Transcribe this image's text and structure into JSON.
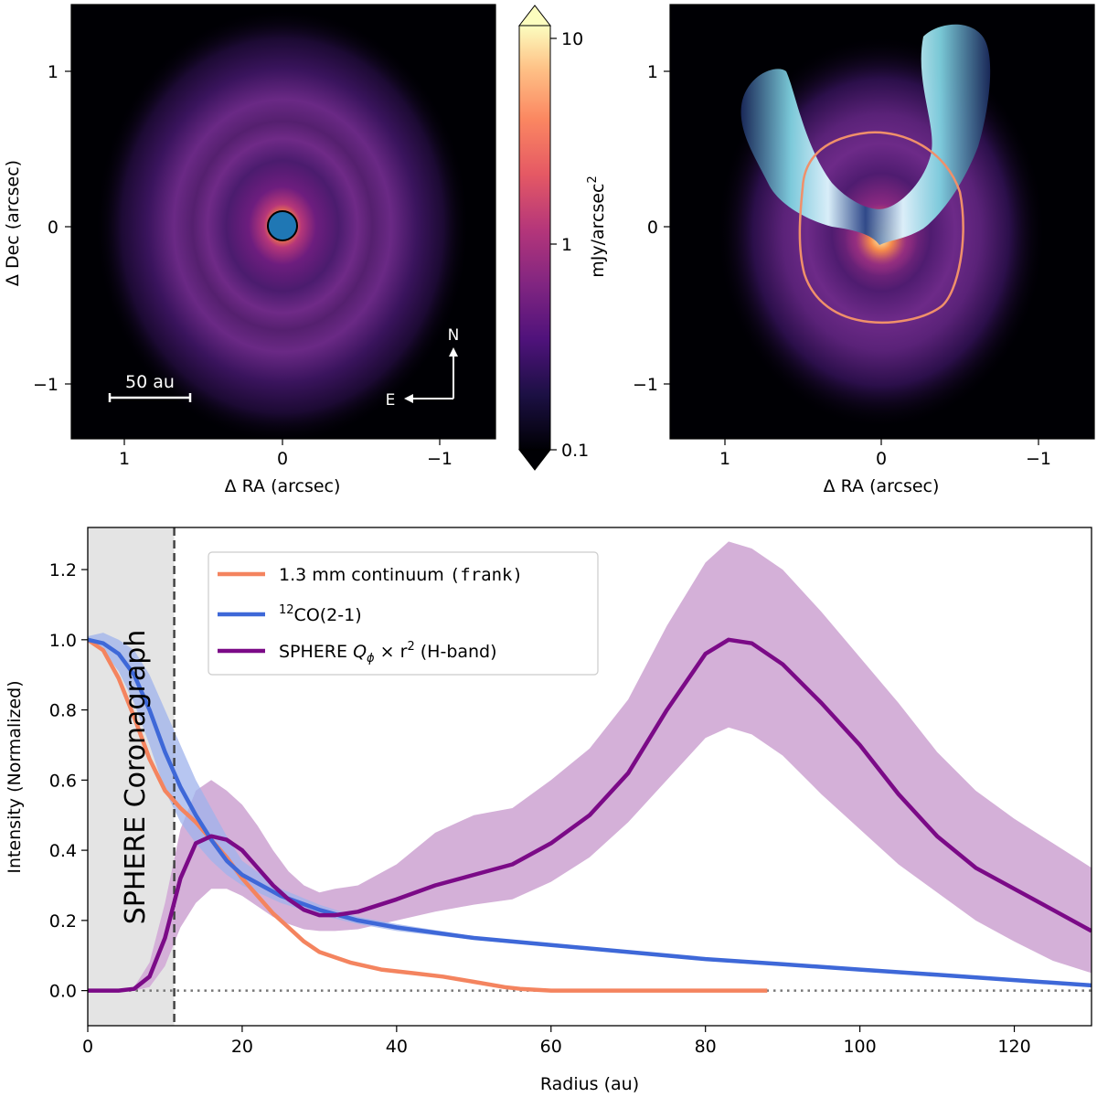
{
  "colors": {
    "continuum": "#f4845f",
    "co": "#3e68d8",
    "sphere": "#7b0a87",
    "sphere_band": "#d4b0d8",
    "co_band": "#9fb3ec",
    "coronagraph_fill": "#e4e4e4",
    "dot": "#1f77b4"
  },
  "top_left": {
    "xlabel": "Δ RA (arcsec)",
    "ylabel": "Δ Dec (arcsec)",
    "xticks": [
      "1",
      "0",
      "−1"
    ],
    "yticks": [
      "1",
      "0",
      "−1"
    ],
    "scalebar_label": "50 au",
    "compass_n": "N",
    "compass_e": "E",
    "xlim": [
      1.35,
      -1.35
    ],
    "ylim": [
      -1.35,
      1.35
    ]
  },
  "colorbar": {
    "label": "mJy/arcsec",
    "label_sup": "2",
    "ticks": [
      "10",
      "1",
      "0.1"
    ]
  },
  "top_right": {
    "xlabel": "Δ RA (arcsec)",
    "xticks": [
      "1",
      "0",
      "−1"
    ],
    "yticks": [
      "1",
      "0",
      "−1"
    ]
  },
  "chart_data": {
    "type": "line",
    "xlabel": "Radius (au)",
    "ylabel": "Intensity (Normalized)",
    "xlim": [
      0,
      130
    ],
    "ylim": [
      -0.1,
      1.32
    ],
    "xticks": [
      "0",
      "20",
      "40",
      "60",
      "80",
      "100",
      "120"
    ],
    "yticks": [
      "0.0",
      "0.2",
      "0.4",
      "0.6",
      "0.8",
      "1.0",
      "1.2"
    ],
    "coronagraph_label": "SPHERE Coronagraph",
    "coronagraph_radius_au": 11.2,
    "legend_position": "top-center",
    "series": [
      {
        "name": "1.3 mm continuum",
        "name_code": "(frank)",
        "x": [
          0,
          2,
          4,
          6,
          8,
          10,
          12,
          14,
          16,
          18,
          20,
          22,
          24,
          26,
          28,
          30,
          34,
          38,
          42,
          46,
          50,
          54,
          56,
          60,
          65,
          70,
          75,
          80,
          85,
          88
        ],
        "y": [
          1.0,
          0.97,
          0.89,
          0.78,
          0.66,
          0.57,
          0.52,
          0.48,
          0.43,
          0.38,
          0.32,
          0.27,
          0.22,
          0.18,
          0.14,
          0.11,
          0.08,
          0.06,
          0.05,
          0.04,
          0.025,
          0.01,
          0.005,
          0.0,
          0.0,
          0.0,
          0.0,
          0.0,
          0.0,
          0.0
        ]
      },
      {
        "name": "CO(2-1)",
        "name_sup": "12",
        "x": [
          0,
          2,
          4,
          6,
          8,
          10,
          12,
          14,
          16,
          18,
          20,
          25,
          30,
          35,
          40,
          50,
          60,
          70,
          80,
          90,
          100,
          110,
          120,
          130
        ],
        "y": [
          1.0,
          0.99,
          0.96,
          0.9,
          0.8,
          0.68,
          0.58,
          0.5,
          0.43,
          0.37,
          0.33,
          0.27,
          0.23,
          0.2,
          0.18,
          0.15,
          0.13,
          0.11,
          0.09,
          0.075,
          0.06,
          0.045,
          0.03,
          0.015
        ],
        "lower": [
          1.0,
          0.97,
          0.91,
          0.82,
          0.7,
          0.57,
          0.48,
          0.42,
          0.37,
          0.33,
          0.3,
          0.25,
          0.215,
          0.19,
          0.17,
          0.145,
          0.125,
          0.105,
          0.085,
          0.07,
          0.055,
          0.04,
          0.025,
          0.01
        ],
        "upper": [
          1.01,
          1.02,
          1.0,
          0.97,
          0.9,
          0.8,
          0.7,
          0.6,
          0.52,
          0.44,
          0.37,
          0.29,
          0.245,
          0.21,
          0.19,
          0.155,
          0.135,
          0.115,
          0.095,
          0.08,
          0.065,
          0.05,
          0.035,
          0.02
        ]
      },
      {
        "name": "SPHERE",
        "name_math": "Q",
        "name_sub": "ϕ",
        "name_times": " × r",
        "name_sup": "2",
        "name_band": " (H-band)",
        "x": [
          0,
          2,
          4,
          6,
          8,
          10,
          12,
          14,
          16,
          18,
          20,
          22,
          24,
          26,
          28,
          30,
          32,
          35,
          40,
          45,
          50,
          55,
          60,
          65,
          70,
          75,
          80,
          83,
          86,
          90,
          95,
          100,
          105,
          110,
          115,
          120,
          125,
          130
        ],
        "y": [
          0.0,
          0.0,
          0.0,
          0.005,
          0.04,
          0.15,
          0.32,
          0.42,
          0.44,
          0.43,
          0.4,
          0.35,
          0.3,
          0.26,
          0.23,
          0.215,
          0.215,
          0.225,
          0.26,
          0.3,
          0.33,
          0.36,
          0.42,
          0.5,
          0.62,
          0.8,
          0.96,
          1.0,
          0.99,
          0.93,
          0.82,
          0.7,
          0.56,
          0.44,
          0.35,
          0.29,
          0.23,
          0.17
        ],
        "lower": [
          0.0,
          0.0,
          0.0,
          0.0,
          0.01,
          0.07,
          0.18,
          0.25,
          0.29,
          0.29,
          0.27,
          0.24,
          0.21,
          0.19,
          0.175,
          0.17,
          0.17,
          0.175,
          0.2,
          0.225,
          0.245,
          0.26,
          0.31,
          0.38,
          0.48,
          0.6,
          0.72,
          0.75,
          0.73,
          0.67,
          0.56,
          0.46,
          0.36,
          0.28,
          0.2,
          0.14,
          0.085,
          0.05
        ],
        "upper": [
          0.0,
          0.0,
          0.0,
          0.01,
          0.08,
          0.25,
          0.46,
          0.57,
          0.6,
          0.57,
          0.53,
          0.47,
          0.4,
          0.34,
          0.3,
          0.28,
          0.29,
          0.3,
          0.36,
          0.45,
          0.5,
          0.52,
          0.6,
          0.69,
          0.83,
          1.04,
          1.22,
          1.28,
          1.26,
          1.2,
          1.08,
          0.95,
          0.82,
          0.68,
          0.57,
          0.49,
          0.42,
          0.35
        ]
      }
    ]
  }
}
